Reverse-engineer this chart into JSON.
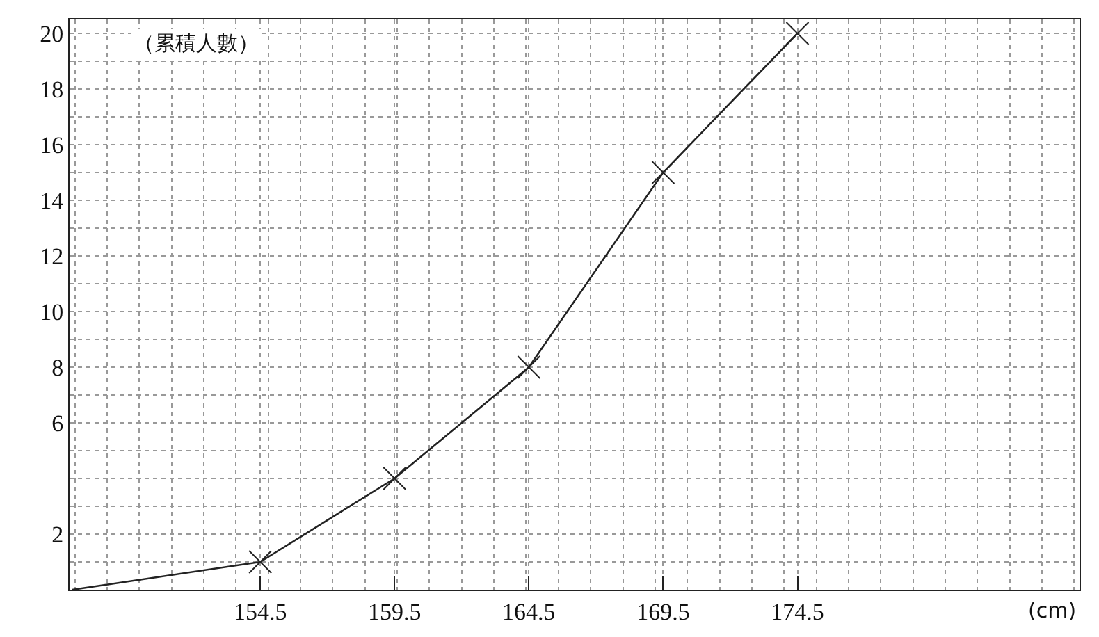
{
  "chart_data": {
    "type": "line",
    "xlabel": "(cm)",
    "ylabel": "（累積人數）",
    "series": [
      {
        "x": [
          147.5,
          154.5
        ],
        "values": [
          0,
          1
        ],
        "color": "#222222"
      },
      {
        "x": [
          154.5,
          159.5,
          164.5,
          169.5,
          174.5
        ],
        "values": [
          1,
          4,
          8,
          15,
          20
        ],
        "color": "#222222",
        "marker": "cross"
      }
    ],
    "xlim": [
      147.4,
      185
    ],
    "xticks": [
      154.5,
      159.5,
      164.5,
      169.5,
      174.5
    ],
    "ylim": [
      0,
      20.5
    ],
    "yticks": [
      2,
      6,
      8,
      10,
      12,
      14,
      16,
      18,
      20
    ],
    "grid": true,
    "line_style": "solid"
  }
}
